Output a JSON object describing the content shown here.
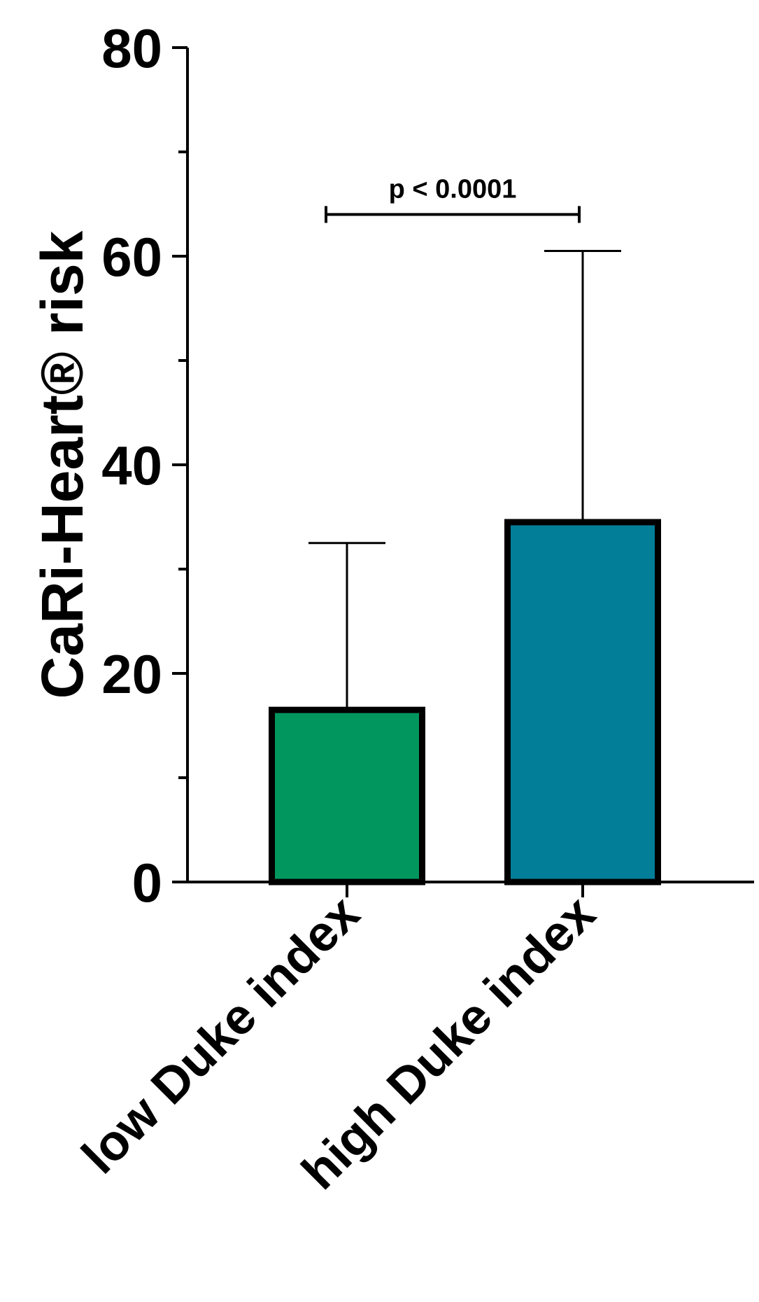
{
  "chart_data": {
    "type": "bar",
    "ylabel": "CaRi-Heart® risk",
    "xlabel": "",
    "categories": [
      "low Duke index",
      "high Duke index"
    ],
    "values": [
      16.5,
      34.5
    ],
    "error_upper": [
      32.5,
      60.5
    ],
    "colors": [
      "#02965F",
      "#037E99"
    ],
    "ylim": [
      0,
      80
    ],
    "yticks_major": [
      0,
      20,
      40,
      60,
      80
    ],
    "yticks_major_labels": [
      "0",
      "20",
      "40",
      "60",
      "80"
    ],
    "yticks_minor": [
      10,
      30,
      50,
      70
    ],
    "grid": false,
    "significance": {
      "label": "p < 0.0001",
      "between": [
        0,
        1
      ],
      "y": 64
    }
  }
}
